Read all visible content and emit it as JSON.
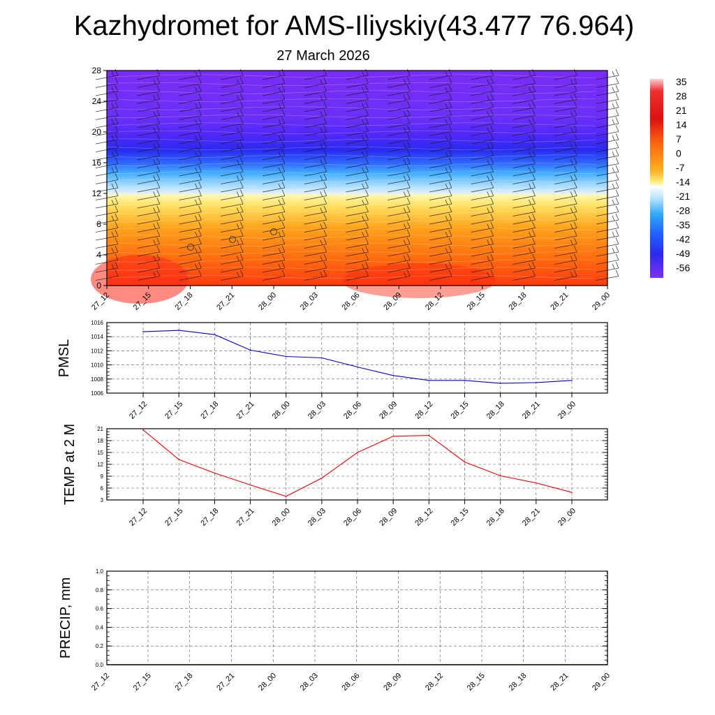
{
  "title": "Kazhydromet for AMS-Iliyskiy(43.477 76.964)",
  "subtitle": "27 March 2026",
  "chart_data": [
    {
      "id": "vertical-temperature",
      "type": "heatmap",
      "x_ticks": [
        "27_12",
        "27_15",
        "27_18",
        "27_21",
        "28_00",
        "28_03",
        "28_06",
        "28_09",
        "28_12",
        "28_15",
        "28_18",
        "28_21",
        "29_00"
      ],
      "y_ticks": [
        "0",
        "4",
        "8",
        "12",
        "16",
        "20",
        "24",
        "28"
      ],
      "ylim": [
        0,
        28
      ],
      "colorbar_ticks": [
        "35",
        "28",
        "21",
        "14",
        "7",
        "0",
        "-7",
        "-14",
        "-21",
        "-28",
        "-35",
        "-42",
        "-49",
        "-56"
      ],
      "colorbar_range": [
        -63,
        42
      ]
    },
    {
      "id": "pmsl",
      "type": "line",
      "ylabel": "PMSL",
      "x_ticks": [
        "27_12",
        "27_15",
        "27_18",
        "27_21",
        "28_00",
        "28_03",
        "28_06",
        "28_09",
        "28_12",
        "28_15",
        "28_18",
        "28_21",
        "29_00"
      ],
      "y_ticks": [
        "1016",
        "1014",
        "1012",
        "1010",
        "1008",
        "1006"
      ],
      "ylim": [
        1006,
        1016
      ],
      "color": "#0000cc",
      "values": [
        1014.7,
        1014.9,
        1014.3,
        1012.1,
        1011.2,
        1011.0,
        1009.7,
        1008.5,
        1007.8,
        1007.8,
        1007.4,
        1007.5,
        1007.8
      ]
    },
    {
      "id": "temp2m",
      "type": "line",
      "ylabel": "TEMP at 2 M",
      "x_ticks": [
        "27_12",
        "27_15",
        "27_18",
        "27_21",
        "28_00",
        "28_03",
        "28_06",
        "28_09",
        "28_12",
        "28_15",
        "28_18",
        "28_21",
        "29_00"
      ],
      "y_ticks": [
        "21",
        "18",
        "15",
        "12",
        "9",
        "6",
        "3"
      ],
      "ylim": [
        3,
        21
      ],
      "color": "#ee0000",
      "values": [
        20.7,
        13.2,
        9.8,
        6.8,
        3.9,
        8.5,
        15.0,
        19.1,
        19.3,
        12.6,
        9.1,
        7.3,
        4.9
      ]
    },
    {
      "id": "precip",
      "type": "line",
      "ylabel": "PRECIP, mm",
      "x_ticks": [
        "27_12",
        "27_15",
        "27_18",
        "27_21",
        "28_00",
        "28_03",
        "28_06",
        "28_09",
        "28_12",
        "28_15",
        "28_18",
        "28_21",
        "29_00"
      ],
      "y_ticks": [
        "1.0",
        "0.8",
        "0.6",
        "0.4",
        "0.2",
        "0.0"
      ],
      "ylim": [
        0,
        1
      ],
      "color": "#006400",
      "values": [
        0,
        0,
        0,
        0,
        0,
        0,
        0,
        0,
        0,
        0,
        0,
        0,
        0
      ]
    }
  ]
}
